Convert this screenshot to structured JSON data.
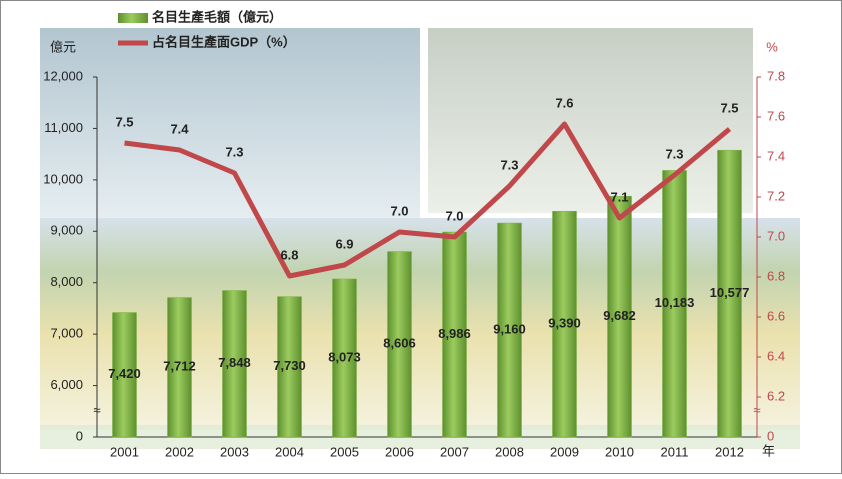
{
  "chart_data": {
    "type": "bar-line",
    "y_label": "億元",
    "y2_label": "%",
    "x_label": "年",
    "break_symbol": "≈",
    "categories": [
      "2001",
      "2002",
      "2003",
      "2004",
      "2005",
      "2006",
      "2007",
      "2008",
      "2009",
      "2010",
      "2011",
      "2012"
    ],
    "series": [
      {
        "name": "名目生產毛額（億元）",
        "type": "bar",
        "color": "#7cb342",
        "values": [
          7420,
          7712,
          7848,
          7730,
          8073,
          8606,
          8986,
          9160,
          9390,
          9682,
          10183,
          10577
        ],
        "value_labels": [
          "7,420",
          "7,712",
          "7,848",
          "7,730",
          "8,073",
          "8,606",
          "8,986",
          "9,160",
          "9,390",
          "9,682",
          "10,183",
          "10,577"
        ]
      },
      {
        "name": "占名目生產面GDP（%）",
        "type": "line",
        "axis": "y2",
        "color": "#c0474a",
        "values": [
          7.47,
          7.435,
          7.32,
          6.805,
          6.86,
          7.025,
          7.0,
          7.255,
          7.565,
          7.095,
          7.31,
          7.54
        ],
        "value_labels": [
          "7.5",
          "7.4",
          "7.3",
          "6.8",
          "6.9",
          "7.0",
          "7.0",
          "7.3",
          "7.6",
          "7.1",
          "7.3",
          "7.5"
        ]
      }
    ],
    "ylim": [
      0,
      12000
    ],
    "yticks": [
      0,
      {
        "value": 6000,
        "label": "6,000"
      },
      {
        "value": 7000,
        "label": "7,000"
      },
      {
        "value": 8000,
        "label": "8,000"
      },
      {
        "value": 9000,
        "label": "9,000"
      },
      {
        "value": 10000,
        "label": "10,000"
      },
      {
        "value": 11000,
        "label": "11,000"
      },
      {
        "value": 12000,
        "label": "12,000"
      }
    ],
    "y2lim": [
      0,
      7.8
    ],
    "y2ticks": [
      0,
      6.2,
      6.4,
      6.6,
      6.8,
      {
        "value": 7.0,
        "label": "7.0"
      },
      7.2,
      7.4,
      7.6,
      7.8
    ]
  }
}
